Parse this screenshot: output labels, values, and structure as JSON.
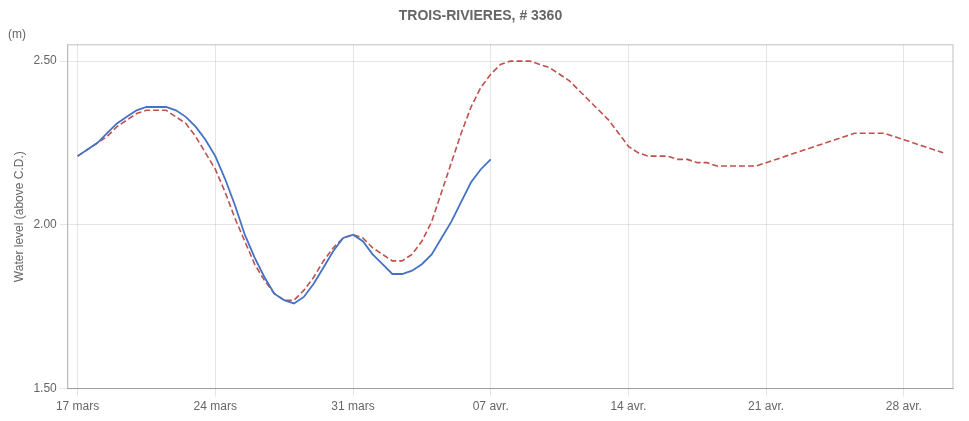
{
  "chart_data": {
    "type": "line",
    "title": "TROIS-RIVIERES, # 3360",
    "ylabel": "Water level (above C.D.)",
    "annotation": "(m)",
    "xlim": [
      -0.5,
      44.5
    ],
    "xticks": [
      {
        "value": 0,
        "label": "17 mars"
      },
      {
        "value": 7,
        "label": "24 mars"
      },
      {
        "value": 14,
        "label": "31 mars"
      },
      {
        "value": 21,
        "label": "07 avr."
      },
      {
        "value": 28,
        "label": "14 avr."
      },
      {
        "value": 35,
        "label": "21 avr."
      },
      {
        "value": 42,
        "label": "28 avr."
      }
    ],
    "ylim": [
      1.5,
      2.55
    ],
    "yticks": [
      {
        "value": 1.5,
        "label": "1.50"
      },
      {
        "value": 2.0,
        "label": "2.00"
      },
      {
        "value": 2.5,
        "label": "2.50"
      }
    ],
    "grid": true,
    "series": [
      {
        "color": "#c0504d",
        "line_style": "dashed",
        "x": [
          0,
          0.5,
          1,
          1.5,
          2,
          2.5,
          3,
          3.5,
          4,
          4.5,
          5,
          5.5,
          6,
          6.5,
          7,
          7.5,
          8,
          8.5,
          9,
          9.5,
          10,
          10.5,
          11,
          11.5,
          12,
          12.5,
          13,
          13.5,
          14,
          14.5,
          15,
          15.5,
          16,
          16.5,
          17,
          17.5,
          18,
          18.5,
          19,
          19.5,
          20,
          20.5,
          21,
          21.5,
          22,
          22.5,
          23,
          23.5,
          24,
          24.5,
          25,
          25.5,
          26,
          26.5,
          27,
          27.5,
          28,
          28.5,
          29,
          29.5,
          30,
          30.5,
          31,
          31.5,
          32,
          32.5,
          33,
          33.5,
          34,
          34.5,
          35,
          35.5,
          36,
          36.5,
          37,
          37.5,
          38,
          38.5,
          39,
          39.5,
          40,
          40.5,
          41,
          41.5,
          42,
          42.5,
          43,
          43.5,
          44
        ],
        "values": [
          2.21,
          2.23,
          2.25,
          2.27,
          2.3,
          2.32,
          2.34,
          2.35,
          2.35,
          2.35,
          2.33,
          2.31,
          2.27,
          2.22,
          2.17,
          2.1,
          2.02,
          1.95,
          1.88,
          1.83,
          1.79,
          1.77,
          1.77,
          1.8,
          1.84,
          1.89,
          1.93,
          1.96,
          1.97,
          1.96,
          1.93,
          1.91,
          1.89,
          1.89,
          1.91,
          1.95,
          2.01,
          2.1,
          2.19,
          2.28,
          2.36,
          2.42,
          2.46,
          2.49,
          2.5,
          2.5,
          2.5,
          2.49,
          2.48,
          2.46,
          2.44,
          2.41,
          2.38,
          2.35,
          2.32,
          2.28,
          2.24,
          2.22,
          2.21,
          2.21,
          2.21,
          2.2,
          2.2,
          2.19,
          2.19,
          2.18,
          2.18,
          2.18,
          2.18,
          2.18,
          2.19,
          2.2,
          2.21,
          2.22,
          2.23,
          2.24,
          2.25,
          2.26,
          2.27,
          2.28,
          2.28,
          2.28,
          2.28,
          2.27,
          2.26,
          2.25,
          2.24,
          2.23,
          2.22
        ]
      },
      {
        "color": "#4472c4",
        "line_style": "solid",
        "x": [
          0,
          0.5,
          1,
          1.5,
          2,
          2.5,
          3,
          3.5,
          4,
          4.5,
          5,
          5.5,
          6,
          6.5,
          7,
          7.5,
          8,
          8.5,
          9,
          9.5,
          10,
          10.5,
          11,
          11.5,
          12,
          12.5,
          13,
          13.5,
          14,
          14.5,
          15,
          15.5,
          16,
          16.5,
          17,
          17.5,
          18,
          18.5,
          19,
          19.5,
          20,
          20.5,
          21
        ],
        "values": [
          2.21,
          2.23,
          2.25,
          2.28,
          2.31,
          2.33,
          2.35,
          2.36,
          2.36,
          2.36,
          2.35,
          2.33,
          2.3,
          2.26,
          2.21,
          2.14,
          2.06,
          1.97,
          1.9,
          1.84,
          1.79,
          1.77,
          1.76,
          1.78,
          1.82,
          1.87,
          1.92,
          1.96,
          1.97,
          1.95,
          1.91,
          1.88,
          1.85,
          1.85,
          1.86,
          1.88,
          1.91,
          1.96,
          2.01,
          2.07,
          2.13,
          2.17,
          2.2
        ]
      }
    ]
  }
}
